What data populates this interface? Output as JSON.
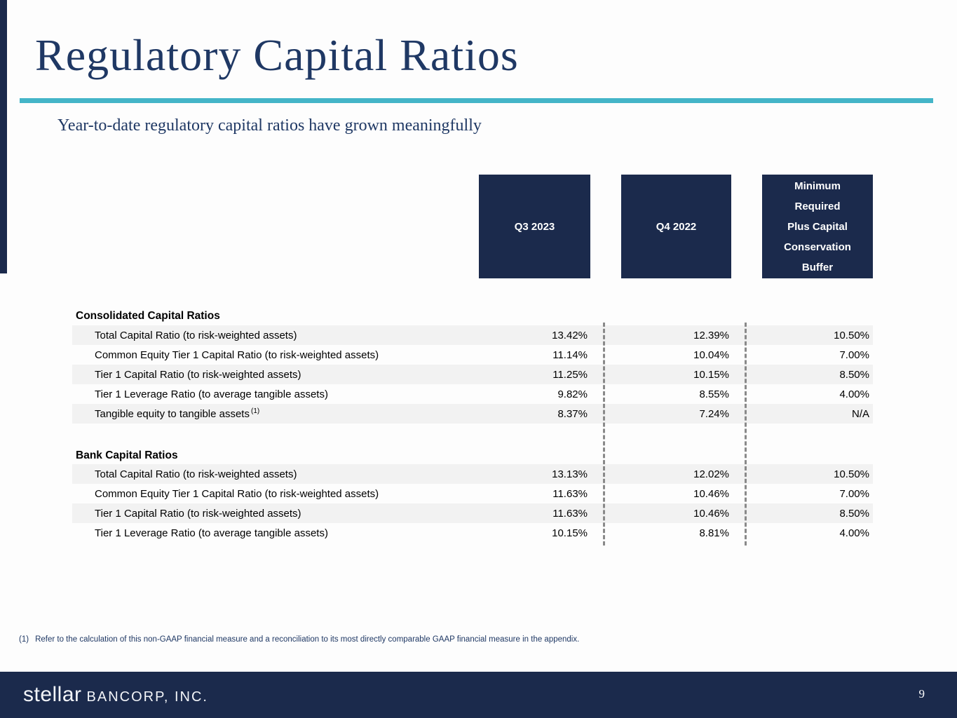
{
  "slide": {
    "title": "Regulatory Capital Ratios",
    "subtitle": "Year-to-date regulatory capital ratios have grown meaningfully",
    "page_number": "9",
    "footnote": {
      "marker": "(1)",
      "text": "Refer to the calculation of this non-GAAP financial measure and a reconciliation to its most directly comparable GAAP financial measure in the appendix."
    },
    "logo": {
      "primary": "stellar",
      "secondary": "BANCORP, INC."
    }
  },
  "colors": {
    "navy": "#1b2a4c",
    "title_navy": "#1f3864",
    "teal_rule": "#44b5c8",
    "row_stripe": "#f2f2f2",
    "dashed_divider": "#8a8a8a"
  },
  "table": {
    "columns": [
      {
        "label": "Q3 2023"
      },
      {
        "label": "Q4 2022"
      },
      {
        "label": "Minimum Required Plus Capital Conservation Buffer",
        "lines": [
          "Minimum",
          "Required",
          "Plus Capital",
          "Conservation",
          "Buffer"
        ]
      }
    ],
    "sections": [
      {
        "header": "Consolidated Capital Ratios",
        "rows": [
          {
            "label": "Total Capital Ratio (to risk-weighted assets)",
            "q3_2023": "13.42%",
            "q4_2022": "12.39%",
            "minimum": "10.50%"
          },
          {
            "label": "Common Equity Tier 1 Capital Ratio (to risk-weighted assets)",
            "q3_2023": "11.14%",
            "q4_2022": "10.04%",
            "minimum": "7.00%"
          },
          {
            "label": "Tier 1 Capital Ratio (to risk-weighted assets)",
            "q3_2023": "11.25%",
            "q4_2022": "10.15%",
            "minimum": "8.50%"
          },
          {
            "label": "Tier 1 Leverage Ratio (to average tangible assets)",
            "q3_2023": "9.82%",
            "q4_2022": "8.55%",
            "minimum": "4.00%"
          },
          {
            "label": "Tangible equity to tangible assets",
            "footnote_ref": "(1)",
            "q3_2023": "8.37%",
            "q4_2022": "7.24%",
            "minimum": "N/A"
          }
        ]
      },
      {
        "header": "Bank Capital Ratios",
        "rows": [
          {
            "label": "Total Capital Ratio (to risk-weighted assets)",
            "q3_2023": "13.13%",
            "q4_2022": "12.02%",
            "minimum": "10.50%"
          },
          {
            "label": "Common Equity Tier 1 Capital Ratio (to risk-weighted assets)",
            "q3_2023": "11.63%",
            "q4_2022": "10.46%",
            "minimum": "7.00%"
          },
          {
            "label": "Tier 1 Capital Ratio (to risk-weighted assets)",
            "q3_2023": "11.63%",
            "q4_2022": "10.46%",
            "minimum": "8.50%"
          },
          {
            "label": "Tier 1 Leverage Ratio (to average tangible assets)",
            "q3_2023": "10.15%",
            "q4_2022": "8.81%",
            "minimum": "4.00%"
          }
        ]
      }
    ]
  }
}
